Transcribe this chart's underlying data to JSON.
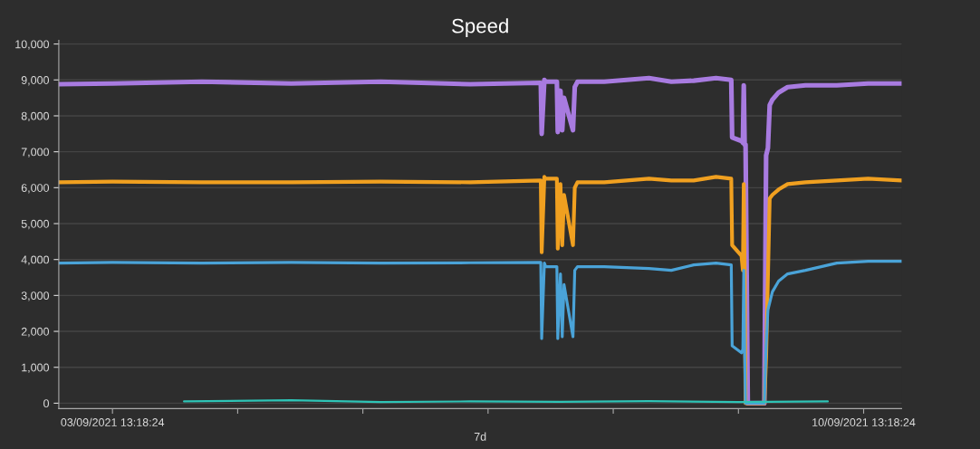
{
  "chart_data": {
    "type": "line",
    "title": "Speed",
    "x": [
      "2021-09-03T01:18",
      "2021-09-03T13:18",
      "2021-09-04T09:18",
      "2021-09-05T05:18",
      "2021-09-06T01:18",
      "2021-09-06T21:18",
      "2021-09-07T13:06",
      "2021-09-07T13:18",
      "2021-09-07T13:54",
      "2021-09-07T14:12",
      "2021-09-07T16:42",
      "2021-09-07T16:54",
      "2021-09-07T17:30",
      "2021-09-07T17:54",
      "2021-09-07T18:18",
      "2021-09-07T20:18",
      "2021-09-07T20:42",
      "2021-09-07T21:18",
      "2021-09-08T03:18",
      "2021-09-08T13:18",
      "2021-09-08T18:18",
      "2021-09-08T23:18",
      "2021-09-09T04:18",
      "2021-09-09T07:42",
      "2021-09-09T07:54",
      "2021-09-09T10:00",
      "2021-09-09T10:18",
      "2021-09-09T10:30",
      "2021-09-09T10:42",
      "2021-09-09T10:54",
      "2021-09-09T11:24",
      "2021-09-09T11:48",
      "2021-09-09T15:06",
      "2021-09-09T15:30",
      "2021-09-09T15:54",
      "2021-09-09T16:18",
      "2021-09-09T16:54",
      "2021-09-09T18:18",
      "2021-09-09T20:18",
      "2021-09-10T00:18",
      "2021-09-10T07:18",
      "2021-09-10T14:18",
      "2021-09-10T21:48"
    ],
    "series": [
      {
        "color": "#a87be0",
        "values": [
          8880,
          8900,
          8950,
          8900,
          8950,
          8880,
          8920,
          7500,
          9000,
          8950,
          8950,
          7550,
          8700,
          7600,
          8500,
          7600,
          8800,
          8950,
          8950,
          9050,
          8950,
          8980,
          9050,
          9000,
          7400,
          7300,
          7250,
          8850,
          7200,
          7200,
          0,
          0,
          0,
          6900,
          7100,
          8300,
          8450,
          8650,
          8800,
          8850,
          8850,
          8900,
          8900
        ]
      },
      {
        "color": "#f0a020",
        "values": [
          6150,
          6170,
          6150,
          6150,
          6170,
          6150,
          6200,
          4200,
          6300,
          6250,
          6250,
          4300,
          6100,
          4400,
          5800,
          4400,
          6000,
          6150,
          6150,
          6250,
          6200,
          6200,
          6300,
          6250,
          4400,
          4100,
          3700,
          6100,
          3600,
          0,
          0,
          0,
          0,
          1300,
          3500,
          5700,
          5800,
          5950,
          6100,
          6150,
          6200,
          6250,
          6200
        ]
      },
      {
        "color": "#4aa3d8",
        "values": [
          3900,
          3920,
          3900,
          3920,
          3900,
          3910,
          3920,
          1800,
          3900,
          3800,
          3800,
          1800,
          3600,
          1850,
          3300,
          1850,
          3700,
          3800,
          3800,
          3750,
          3700,
          3850,
          3900,
          3850,
          1600,
          1400,
          1500,
          3700,
          1400,
          0,
          0,
          0,
          0,
          1600,
          2600,
          2800,
          3100,
          3400,
          3600,
          3700,
          3900,
          3950,
          3950
        ]
      },
      {
        "color": "#2ec4b6",
        "x": [
          "2021-09-04T05:18",
          "2021-09-05T05:18",
          "2021-09-06T01:18",
          "2021-09-06T21:18",
          "2021-09-07T17:18",
          "2021-09-08T13:18",
          "2021-09-09T09:18",
          "2021-09-10T05:18"
        ],
        "values": [
          50,
          80,
          30,
          50,
          40,
          60,
          30,
          50
        ]
      }
    ],
    "xlim": [
      "2021-09-03T01:18",
      "2021-09-10T21:48"
    ],
    "ylim": [
      -150,
      10100
    ],
    "xticks": [
      {
        "value": "2021-09-03T13:18:24",
        "label": "03/09/2021 13:18:24"
      },
      {
        "value": "2021-09-04T17:18:24",
        "label": null
      },
      {
        "value": "2021-09-05T21:18:24",
        "label": null
      },
      {
        "value": "2021-09-07T01:18:24",
        "label": null
      },
      {
        "value": "2021-09-08T05:18:24",
        "label": null
      },
      {
        "value": "2021-09-09T09:18:24",
        "label": null
      },
      {
        "value": "2021-09-10T13:18:24",
        "label": "10/09/2021 13:18:24"
      }
    ],
    "yticks": [
      {
        "value": 0,
        "label": "0"
      },
      {
        "value": 1000,
        "label": "1,000"
      },
      {
        "value": 2000,
        "label": "2,000"
      },
      {
        "value": 3000,
        "label": "3,000"
      },
      {
        "value": 4000,
        "label": "4,000"
      },
      {
        "value": 5000,
        "label": "5,000"
      },
      {
        "value": 6000,
        "label": "6,000"
      },
      {
        "value": 7000,
        "label": "7,000"
      },
      {
        "value": 8000,
        "label": "8,000"
      },
      {
        "value": 9000,
        "label": "9,000"
      },
      {
        "value": 10000,
        "label": "10,000"
      }
    ],
    "xlabel": "7d",
    "grid": "y",
    "line_style": "solid",
    "marker": "none"
  }
}
